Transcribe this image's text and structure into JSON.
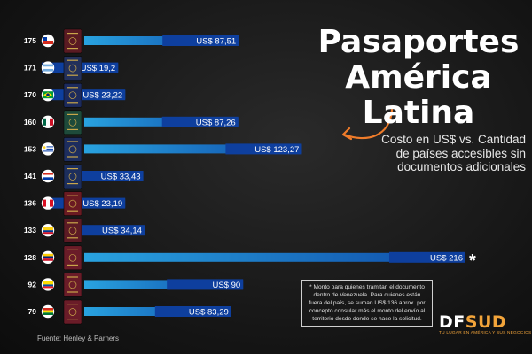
{
  "title": [
    "Pasaportes",
    "América",
    "Latina"
  ],
  "subtitle": "Costo en US$ vs. Cantidad de países accesibles sin documentos adicionales",
  "footnote_mark": "*",
  "note": "* Monto para quienes tramitan el documento dentro de Venezuela. Para quienes están fuera del país, se suman US$ 136 aprox. por concepto consular más el monto del envío al territorio desde donde se hace la solicitud.",
  "source": "Fuente: Henley & Parners",
  "brand": {
    "name_a": "DF",
    "name_b": "SUD",
    "tagline": "TU LUGAR EN AMÉRICA Y SUS NEGOCIOS"
  },
  "colors": {
    "bar_start": "#29a3e0",
    "bar_end": "#0e4aa8",
    "background": "#141414"
  },
  "chart_data": {
    "type": "bar",
    "orientation": "horizontal",
    "value_prefix": "US$ ",
    "xlim": [
      0,
      216
    ],
    "categories": [
      "Chile",
      "Argentina",
      "Brasil",
      "México",
      "Uruguay",
      "Paraguay",
      "Perú",
      "Colombia",
      "Venezuela",
      "Ecuador",
      "Bolivia"
    ],
    "countries_accessible": [
      175,
      171,
      170,
      160,
      153,
      141,
      136,
      133,
      128,
      92,
      79
    ],
    "values": [
      87.51,
      19.2,
      23.22,
      87.26,
      123.27,
      33.43,
      23.19,
      34.14,
      216,
      90,
      83.29
    ],
    "value_labels": [
      "US$ 87,51",
      "US$ 19,2",
      "US$ 23,22",
      "US$ 87,26",
      "US$ 123,27",
      "US$ 33,43",
      "US$ 23,19",
      "US$ 34,14",
      "US$ 216",
      "US$ 90",
      "US$ 83,29"
    ],
    "flags": [
      "chile-flag",
      "argentina-flag",
      "brazil-flag",
      "mexico-flag",
      "uruguay-flag",
      "paraguay-flag",
      "peru-flag",
      "colombia-flag",
      "venezuela-flag",
      "ecuador-flag",
      "bolivia-flag"
    ],
    "passport_colors": [
      "#5a1a22",
      "#23305a",
      "#1c2a5c",
      "#1e4a3a",
      "#1d2d5e",
      "#1c2e5c",
      "#6a1a22",
      "#5c1a24",
      "#6a1c28",
      "#6a1c28",
      "#6a1c28"
    ]
  }
}
